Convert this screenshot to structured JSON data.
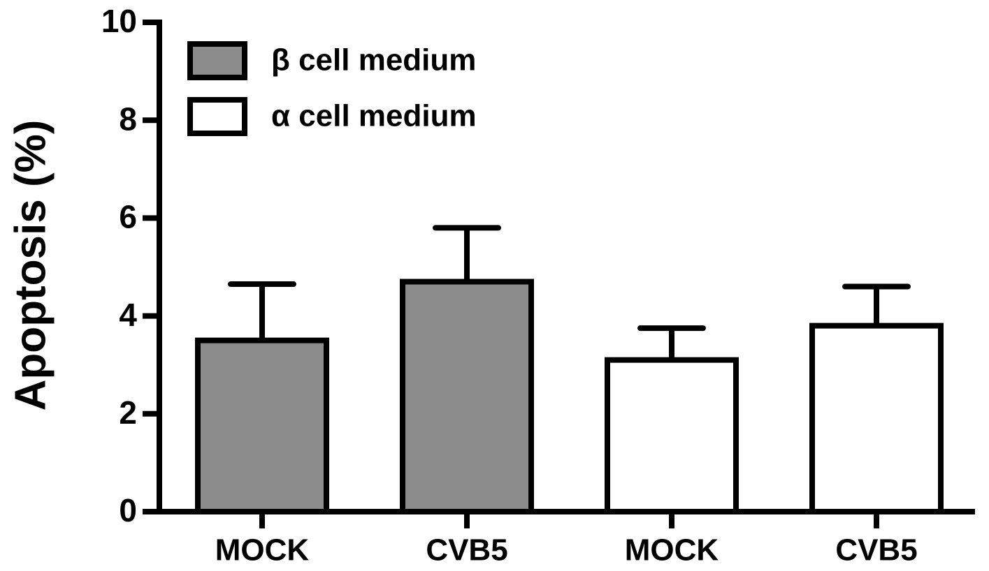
{
  "chart_data": {
    "type": "bar",
    "y_label": "Apoptosis (%)",
    "categories": [
      "MOCK",
      "CVB5",
      "MOCK",
      "CVB5"
    ],
    "series": [
      {
        "name": "β cell medium",
        "color": "#8c8c8c",
        "values": [
          3.5,
          4.7,
          null,
          null
        ],
        "errors": [
          1.15,
          1.1,
          null,
          null
        ]
      },
      {
        "name": "α cell medium",
        "color": "#ffffff",
        "values": [
          null,
          null,
          3.1,
          3.8
        ],
        "errors": [
          null,
          null,
          0.65,
          0.8
        ]
      }
    ],
    "ylim": [
      0,
      10
    ],
    "yticks": [
      0,
      2,
      4,
      6,
      8,
      10
    ],
    "legend": "upper-left"
  }
}
